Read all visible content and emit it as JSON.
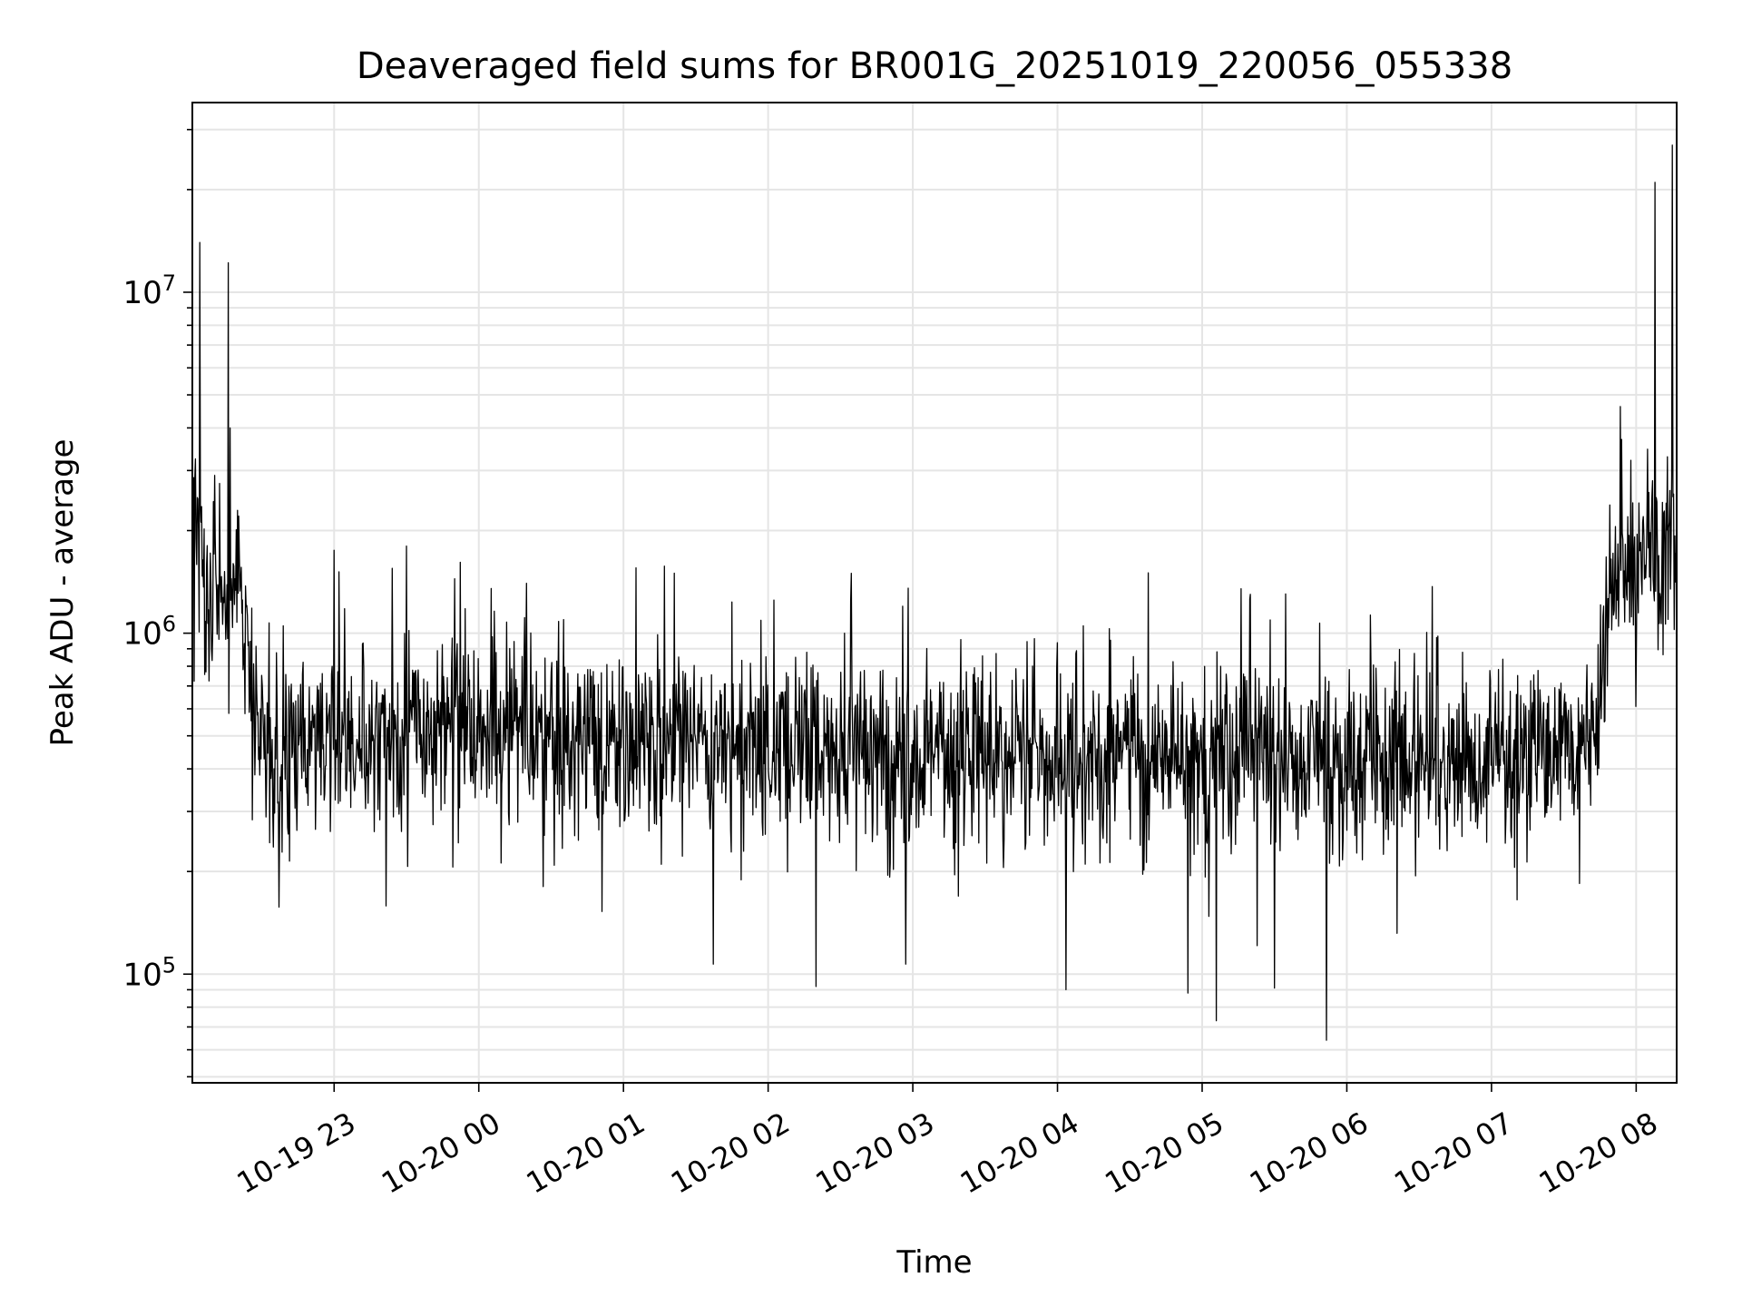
{
  "chart_data": {
    "type": "line",
    "title": "Deaveraged field sums for BR001G_20251019_220056_055338",
    "xlabel": "Time",
    "ylabel": "Peak ADU - average",
    "yscale": "log",
    "ylim": [
      48000,
      36000000
    ],
    "xlim_hours": [
      -1.98,
      8.28
    ],
    "grid": true,
    "line_color": "#000000",
    "grid_color": "#e5e5e5",
    "x_ticks": [
      {
        "label": "10-19 23",
        "hours": -1
      },
      {
        "label": "10-20 00",
        "hours": 0
      },
      {
        "label": "10-20 01",
        "hours": 1
      },
      {
        "label": "10-20 02",
        "hours": 2
      },
      {
        "label": "10-20 03",
        "hours": 3
      },
      {
        "label": "10-20 04",
        "hours": 4
      },
      {
        "label": "10-20 05",
        "hours": 5
      },
      {
        "label": "10-20 06",
        "hours": 6
      },
      {
        "label": "10-20 07",
        "hours": 7
      },
      {
        "label": "10-20 08",
        "hours": 8
      }
    ],
    "y_ticks": [
      {
        "base": "10",
        "exp": "5",
        "value": 100000
      },
      {
        "base": "10",
        "exp": "6",
        "value": 1000000
      },
      {
        "base": "10",
        "exp": "7",
        "value": 10000000
      }
    ],
    "series": [
      {
        "name": "field sums",
        "x_hours": [
          -1.98,
          -1.9,
          -1.85,
          -1.78,
          -1.72,
          -1.65,
          -1.55,
          -1.45,
          -1.3,
          -1.0,
          -0.5,
          0.0,
          0.5,
          1.0,
          2.0,
          3.0,
          4.0,
          5.0,
          6.0,
          7.0,
          7.5,
          7.75,
          7.8,
          8.0,
          8.28
        ],
        "baseline": [
          2400000,
          1500000,
          1300000,
          1300000,
          1200000,
          1150000,
          650000,
          470000,
          450000,
          480000,
          500000,
          510000,
          490000,
          490000,
          460000,
          440000,
          430000,
          420000,
          420000,
          430000,
          450000,
          550000,
          1500000,
          1500000,
          1700000
        ],
        "spikes": [
          {
            "t": -1.93,
            "v": 14000000
          },
          {
            "t": -1.73,
            "v": 12200000
          },
          {
            "t": -1.72,
            "v": 4000000
          },
          {
            "t": -1.0,
            "v": 1750000
          },
          {
            "t": -0.5,
            "v": 1800000
          },
          {
            "t": -0.6,
            "v": 1550000
          },
          {
            "t": 0.33,
            "v": 1400000
          },
          {
            "t": 1.35,
            "v": 1500000
          },
          {
            "t": 2.04,
            "v": 1250000
          },
          {
            "t": 2.93,
            "v": 1200000
          },
          {
            "t": 5.27,
            "v": 1350000
          },
          {
            "t": 7.9,
            "v": 3700000
          },
          {
            "t": 8.13,
            "v": 21000000
          },
          {
            "t": 8.25,
            "v": 27000000
          },
          {
            "t": 1.62,
            "v": 107000
          },
          {
            "t": 2.33,
            "v": 92000
          },
          {
            "t": 2.95,
            "v": 107000
          },
          {
            "t": 4.9,
            "v": 88000
          },
          {
            "t": 5.1,
            "v": 73000
          },
          {
            "t": 5.5,
            "v": 91000
          },
          {
            "t": 5.86,
            "v": 64000
          },
          {
            "t": 7.8,
            "v": 700000
          }
        ]
      }
    ]
  }
}
